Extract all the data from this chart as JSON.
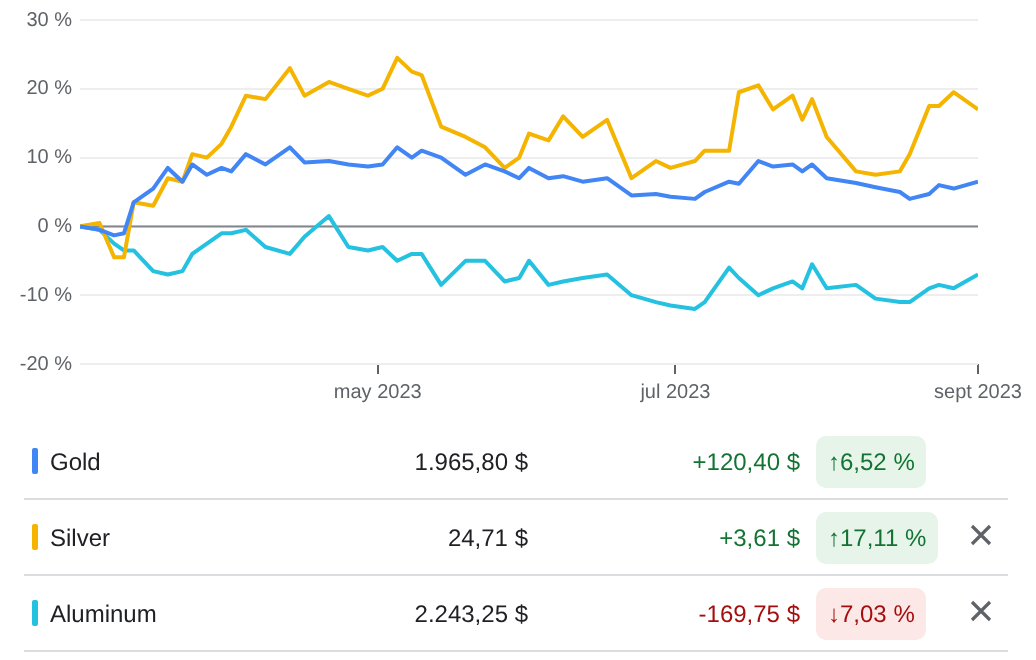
{
  "chart_data": {
    "type": "line",
    "x": [
      "2023-03-01",
      "2023-03-05",
      "2023-03-08",
      "2023-03-10",
      "2023-03-12",
      "2023-03-16",
      "2023-03-19",
      "2023-03-22",
      "2023-03-24",
      "2023-03-27",
      "2023-03-30",
      "2023-04-01",
      "2023-04-04",
      "2023-04-08",
      "2023-04-13",
      "2023-04-16",
      "2023-04-21",
      "2023-04-25",
      "2023-04-29",
      "2023-05-02",
      "2023-05-05",
      "2023-05-08",
      "2023-05-10",
      "2023-05-14",
      "2023-05-19",
      "2023-05-23",
      "2023-05-27",
      "2023-05-30",
      "2023-06-01",
      "2023-06-05",
      "2023-06-08",
      "2023-06-12",
      "2023-06-17",
      "2023-06-22",
      "2023-06-27",
      "2023-06-30",
      "2023-07-05",
      "2023-07-07",
      "2023-07-12",
      "2023-07-14",
      "2023-07-18",
      "2023-07-21",
      "2023-07-25",
      "2023-07-27",
      "2023-07-29",
      "2023-08-01",
      "2023-08-07",
      "2023-08-11",
      "2023-08-16",
      "2023-08-18",
      "2023-08-22",
      "2023-08-24",
      "2023-08-27",
      "2023-09-01"
    ],
    "series": [
      {
        "name": "Gold",
        "color": "#4285f4",
        "values": [
          0,
          -0.5,
          -1.3,
          -1,
          3.5,
          5.5,
          8.5,
          6.5,
          9,
          7.5,
          8.5,
          8,
          10.5,
          9,
          11.5,
          9.3,
          9.5,
          9,
          8.7,
          9,
          11.5,
          10,
          11,
          10,
          7.5,
          9,
          8,
          7,
          8.5,
          7,
          7.3,
          6.5,
          7,
          4.5,
          4.7,
          4.3,
          4,
          5,
          6.5,
          6.2,
          9.5,
          8.7,
          9,
          8,
          9,
          7,
          6.3,
          5.7,
          5,
          4,
          4.7,
          6,
          5.5,
          6.5
        ]
      },
      {
        "name": "Silver",
        "color": "#f4b400",
        "values": [
          0,
          0.5,
          -4.5,
          -4.5,
          3.5,
          3,
          7,
          6.5,
          10.5,
          10,
          12,
          14.5,
          19,
          18.5,
          23,
          19,
          21,
          20,
          19,
          20,
          24.5,
          22.5,
          22,
          14.5,
          13,
          11.5,
          8.5,
          10,
          13.5,
          12.5,
          16,
          13,
          15.5,
          7,
          9.5,
          8.5,
          9.5,
          11,
          11,
          19.5,
          20.5,
          17,
          19,
          15.5,
          18.5,
          13,
          8,
          7.5,
          8,
          10.5,
          17.5,
          17.5,
          19.5,
          17
        ]
      },
      {
        "name": "Aluminum",
        "color": "#24c1e0",
        "values": [
          0,
          -0.5,
          -2.5,
          -3.5,
          -3.5,
          -6.5,
          -7,
          -6.5,
          -4,
          -2.5,
          -1,
          -1,
          -0.5,
          -3,
          -4,
          -1.5,
          1.5,
          -3,
          -3.5,
          -3,
          -5,
          -4,
          -4,
          -8.5,
          -5,
          -5,
          -8,
          -7.5,
          -5,
          -8.5,
          -8,
          -7.5,
          -7,
          -10,
          -11,
          -11.5,
          -12,
          -11,
          -6,
          -7.5,
          -10,
          -9,
          -8,
          -9,
          -5.5,
          -9,
          -8.5,
          -10.5,
          -11,
          -11,
          -9,
          -8.5,
          -9,
          -7
        ]
      }
    ],
    "xlim": [
      "2023-03-01",
      "2023-09-01"
    ],
    "xticks": [
      {
        "value": "2023-05-01",
        "label": "may 2023"
      },
      {
        "value": "2023-07-01",
        "label": "jul 2023"
      },
      {
        "value": "2023-09-01",
        "label": "sept 2023"
      }
    ],
    "ylim": [
      -20,
      30
    ],
    "yticks": [
      {
        "value": -20,
        "label": "-20 %"
      },
      {
        "value": -10,
        "label": "-10 %"
      },
      {
        "value": 0,
        "label": "0 %"
      },
      {
        "value": 10,
        "label": "10 %"
      },
      {
        "value": 20,
        "label": "20 %"
      },
      {
        "value": 30,
        "label": "30 %"
      }
    ],
    "grid": "y",
    "ref_lines": [
      {
        "axis": "y",
        "value": 0,
        "color": "#80868b"
      }
    ],
    "legend": "bottom",
    "annotations": [
      "1.965,80 $",
      "+120,40 $",
      "↑6,52 %",
      "24,71 $",
      "+3,61 $",
      "↑17,11 %",
      "2.243,25 $",
      "-169,75 $",
      "↓7,03 %"
    ]
  }
}
